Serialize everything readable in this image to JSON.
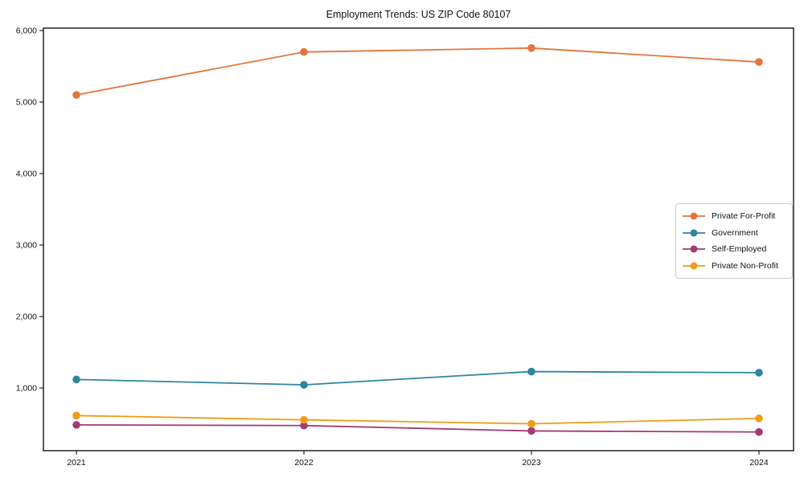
{
  "chart_data": {
    "type": "line",
    "title": "Employment Trends: US ZIP Code 80107",
    "x": [
      2021,
      2022,
      2023,
      2024
    ],
    "x_tick_labels": [
      "2021",
      "2022",
      "2023",
      "2024"
    ],
    "series": [
      {
        "name": "Private For-Profit",
        "color": "#e2763d",
        "values": [
          5100,
          5700,
          5755,
          5560
        ]
      },
      {
        "name": "Government",
        "color": "#2e86a0",
        "values": [
          1120,
          1045,
          1230,
          1215
        ]
      },
      {
        "name": "Self-Employed",
        "color": "#a43a74",
        "values": [
          485,
          475,
          400,
          385
        ]
      },
      {
        "name": "Private Non-Profit",
        "color": "#f09c15",
        "values": [
          615,
          555,
          500,
          575
        ]
      }
    ],
    "yticks": [
      1000,
      2000,
      3000,
      4000,
      5000,
      6000
    ],
    "ytick_labels": [
      "1,000",
      "2,000",
      "3,000",
      "4,000",
      "5,000",
      "6,000"
    ],
    "ylim": [
      124,
      6034
    ],
    "xlim": [
      2020.855,
      2024.152
    ],
    "xlabel": "",
    "ylabel": "",
    "grid": false,
    "marker": "circle",
    "legend_position": "center-right",
    "axis_color": "#000000",
    "legend_border_color": "#cccccc"
  }
}
